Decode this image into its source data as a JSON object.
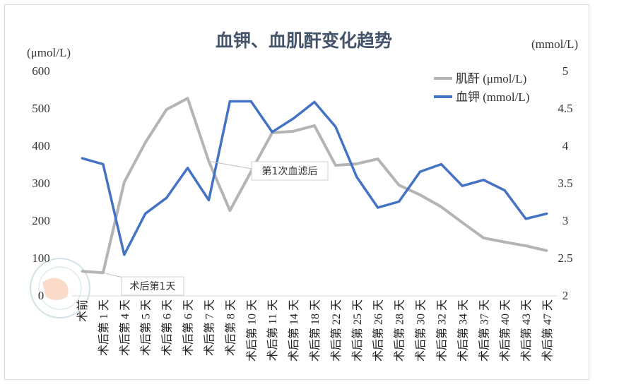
{
  "chart_data": {
    "type": "line",
    "title": "血钾、血肌酐变化趋势",
    "ylabel_left": "(μmol/L)",
    "ylabel_right": "(mmol/L)",
    "ylim_left": [
      0,
      600
    ],
    "ylim_right": [
      2,
      5
    ],
    "yticks_left": [
      0,
      100,
      200,
      300,
      400,
      500,
      600
    ],
    "yticks_right": [
      2,
      2.5,
      3,
      3.5,
      4,
      4.5,
      5
    ],
    "grid": false,
    "legend_position": "top-right",
    "categories": [
      "术前",
      "术后第 1 天",
      "术后第 4 天",
      "术后第 5 天",
      "术后第 6 天",
      "术后第 6 天",
      "术后第 7 天",
      "术后第 8 天",
      "术后第 10 天",
      "术后第 11 天",
      "术后第 14 天",
      "术后第 18 天",
      "术后第 22 天",
      "术后第 25 天",
      "术后第 26 天",
      "术后第 28 天",
      "术后第 30 天",
      "术后第 32 天",
      "术后第 34 天",
      "术后第 37 天",
      "术后第 40 天",
      "术后第 43 天",
      "术后第 47 天"
    ],
    "series": [
      {
        "name": "肌酐 (μmol/L)",
        "axis": "left",
        "color": "#b4b4b4",
        "values": [
          64,
          60,
          302,
          408,
          496,
          526,
          358,
          226,
          330,
          434,
          438,
          453,
          347,
          351,
          364,
          294,
          268,
          236,
          194,
          153,
          142,
          132,
          119
        ]
      },
      {
        "name": "血钾 (mmol/L)",
        "axis": "right",
        "color": "#4472c4",
        "values": [
          3.83,
          3.75,
          2.54,
          3.09,
          3.3,
          3.7,
          3.27,
          4.59,
          4.59,
          4.18,
          4.36,
          4.58,
          4.25,
          3.58,
          3.17,
          3.25,
          3.65,
          3.75,
          3.46,
          3.54,
          3.4,
          3.02,
          3.09
        ]
      }
    ],
    "annotations": [
      {
        "text": "术后第1天",
        "series": 0,
        "index": 1
      },
      {
        "text": "第1次血滤后",
        "series": 0,
        "index": 6
      }
    ]
  },
  "colors": {
    "title": "#44546a",
    "axis": "#d9d9d9"
  }
}
